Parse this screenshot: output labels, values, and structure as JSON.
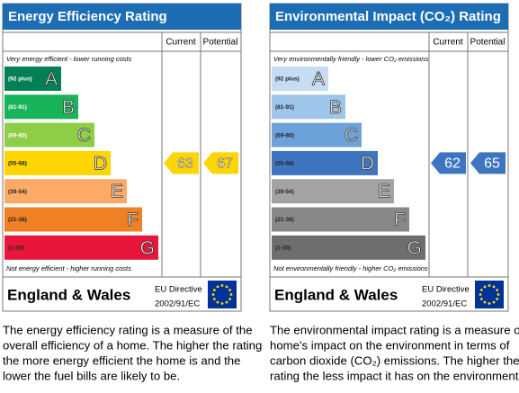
{
  "panels": [
    {
      "title": "Energy Efficiency Rating",
      "columns": [
        "Current",
        "Potential"
      ],
      "top_note": "Very energy efficient - lower running costs",
      "bottom_note": "Not energy efficient - higher running costs",
      "bands": [
        {
          "range": "(92 plus)",
          "letter": "A"
        },
        {
          "range": "(81-91)",
          "letter": "B"
        },
        {
          "range": "(69-80)",
          "letter": "C"
        },
        {
          "range": "(55-68)",
          "letter": "D"
        },
        {
          "range": "(39-54)",
          "letter": "E"
        },
        {
          "range": "(21-38)",
          "letter": "F"
        },
        {
          "range": "(1-20)",
          "letter": "G"
        }
      ],
      "current": 63,
      "potential": 67,
      "footer": "England & Wales",
      "directive": [
        "EU Directive",
        "2002/91/EC"
      ],
      "description": [
        "The energy efficiency rating is a measure of the",
        "overall efficiency of a home. The higher the rating",
        "the more energy efficient the home is and the",
        "lower the fuel bills are likely to be."
      ]
    },
    {
      "title": "Environmental Impact (CO₂) Rating",
      "columns": [
        "Current",
        "Potential"
      ],
      "top_note": "Very environmentally friendly - lower CO₂ emissions",
      "bottom_note": "Not environmentally friendly - higher CO₂ emissions",
      "bands": [
        {
          "range": "(92 plus)",
          "letter": "A"
        },
        {
          "range": "(81-91)",
          "letter": "B"
        },
        {
          "range": "(69-80)",
          "letter": "C"
        },
        {
          "range": "(55-68)",
          "letter": "D"
        },
        {
          "range": "(39-54)",
          "letter": "E"
        },
        {
          "range": "(21-38)",
          "letter": "F"
        },
        {
          "range": "(1-20)",
          "letter": "G"
        }
      ],
      "current": 62,
      "potential": 65,
      "footer": "England & Wales",
      "directive": [
        "EU Directive",
        "2002/91/EC"
      ],
      "description": [
        "The environmental impact rating is a measure of a",
        "home's impact on the environment in terms of",
        "carbon dioxide (CO₂) emissions. The higher the",
        "rating the less impact it has on the environment."
      ]
    }
  ]
}
